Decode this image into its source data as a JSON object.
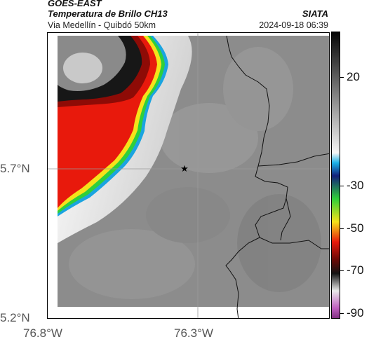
{
  "header": {
    "satellite": "GOES-EAST",
    "product": "Temperatura de Brillo CH13",
    "route": "Via Medellín - Quibdó 50km",
    "organization": "SIATA",
    "timestamp": "2024-09-18 06:39"
  },
  "axes": {
    "lat_ticks": [
      "5.7°N",
      "5.2°N"
    ],
    "lon_ticks": [
      "76.8°W",
      "76.3°W"
    ]
  },
  "colorbar": {
    "labels": [
      "20",
      "-30",
      "-50",
      "-70",
      "-90"
    ]
  },
  "colors": {
    "cloud_white": "#f2f2f2",
    "surface_gray": "#8a8a8a",
    "cold_red": "#e8190c",
    "frame": "#000000"
  }
}
